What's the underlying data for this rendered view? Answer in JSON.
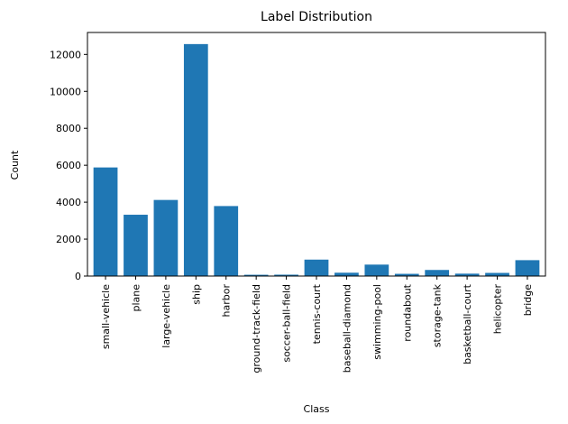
{
  "chart_data": {
    "type": "bar",
    "title": "Label Distribution",
    "xlabel": "Class",
    "ylabel": "Count",
    "categories": [
      "small-vehicle",
      "plane",
      "large-vehicle",
      "ship",
      "harbor",
      "ground-track-field",
      "soccer-ball-field",
      "tennis-court",
      "baseball-diamond",
      "swimming-pool",
      "roundabout",
      "storage-tank",
      "basketball-court",
      "helicopter",
      "bridge"
    ],
    "values": [
      5880,
      3320,
      4120,
      12560,
      3790,
      70,
      75,
      890,
      180,
      620,
      120,
      330,
      130,
      170,
      860
    ],
    "yticks": [
      0,
      2000,
      4000,
      6000,
      8000,
      10000,
      12000
    ],
    "ytick_labels": [
      "0",
      "2000",
      "4000",
      "6000",
      "8000",
      "10000",
      "12000"
    ],
    "ylim": [
      0,
      13188
    ],
    "grid": false,
    "bar_color": "#1f77b4"
  }
}
